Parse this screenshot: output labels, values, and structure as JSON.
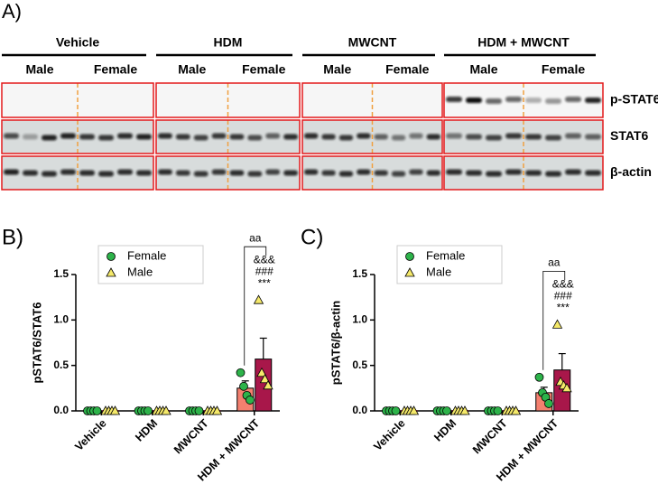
{
  "blot": {
    "panel_label": "A)",
    "groups": [
      {
        "name": "Vehicle",
        "sexes": [
          "Male",
          "Female"
        ]
      },
      {
        "name": "HDM",
        "sexes": [
          "Male",
          "Female"
        ]
      },
      {
        "name": "MWCNT",
        "sexes": [
          "Male",
          "Female"
        ]
      },
      {
        "name": "HDM + MWCNT",
        "sexes": [
          "Male",
          "Female"
        ]
      }
    ],
    "rows": [
      "p-STAT6",
      "STAT6",
      "β-actin"
    ]
  },
  "chart_data": [
    {
      "type": "bar",
      "panel_label": "B)",
      "y_label": "pSTAT6/STAT6",
      "categories": [
        "Vehicle",
        "HDM",
        "MWCNT",
        "HDM + MWCNT"
      ],
      "series": [
        {
          "name": "Female",
          "color": "#f4806f",
          "marker": "circle",
          "marker_color": "#2db34a",
          "values": [
            0,
            0,
            0,
            0.25
          ],
          "errors": [
            0,
            0,
            0,
            0.08
          ],
          "points": [
            [
              0,
              0,
              0,
              0
            ],
            [
              0,
              0,
              0,
              0
            ],
            [
              0,
              0,
              0,
              0
            ],
            [
              0.42,
              0.27,
              0.17,
              0.12
            ]
          ]
        },
        {
          "name": "Male",
          "color": "#a8174a",
          "marker": "triangle",
          "marker_color": "#f5e96a",
          "values": [
            0,
            0,
            0,
            0.57
          ],
          "errors": [
            0,
            0,
            0,
            0.23
          ],
          "points": [
            [
              0,
              0,
              0,
              0
            ],
            [
              0,
              0,
              0,
              0
            ],
            [
              0,
              0,
              0,
              0
            ],
            [
              1.22,
              0.42,
              0.35,
              0.28
            ]
          ]
        }
      ],
      "ylim": [
        0,
        1.5
      ],
      "yticks": [
        {
          "value": 0,
          "label": "0.0"
        },
        0.5,
        {
          "value": 1,
          "label": "1.0"
        },
        1.5
      ],
      "annotations": [
        "aa",
        "&&&",
        "###",
        "***"
      ],
      "legend": "top-left"
    },
    {
      "type": "bar",
      "panel_label": "C)",
      "y_label": "pSTAT6/β-actin",
      "categories": [
        "Vehicle",
        "HDM",
        "MWCNT",
        "HDM + MWCNT"
      ],
      "series": [
        {
          "name": "Female",
          "color": "#f4806f",
          "marker": "circle",
          "marker_color": "#2db34a",
          "values": [
            0,
            0,
            0,
            0.2
          ],
          "errors": [
            0,
            0,
            0,
            0.06
          ],
          "points": [
            [
              0,
              0,
              0,
              0
            ],
            [
              0,
              0,
              0,
              0
            ],
            [
              0,
              0,
              0,
              0
            ],
            [
              0.37,
              0.2,
              0.15,
              0.08
            ]
          ]
        },
        {
          "name": "Male",
          "color": "#a8174a",
          "marker": "triangle",
          "marker_color": "#f5e96a",
          "values": [
            0,
            0,
            0,
            0.45
          ],
          "errors": [
            0,
            0,
            0,
            0.18
          ],
          "points": [
            [
              0,
              0,
              0,
              0
            ],
            [
              0,
              0,
              0,
              0
            ],
            [
              0,
              0,
              0,
              0
            ],
            [
              0.95,
              0.32,
              0.28,
              0.25
            ]
          ]
        }
      ],
      "ylim": [
        0,
        1.5
      ],
      "yticks": [
        {
          "value": 0,
          "label": "0.0"
        },
        0.5,
        {
          "value": 1,
          "label": "1.0"
        },
        1.5
      ],
      "annotations": [
        "aa",
        "&&&",
        "###",
        "***"
      ],
      "legend": "top-left"
    }
  ]
}
